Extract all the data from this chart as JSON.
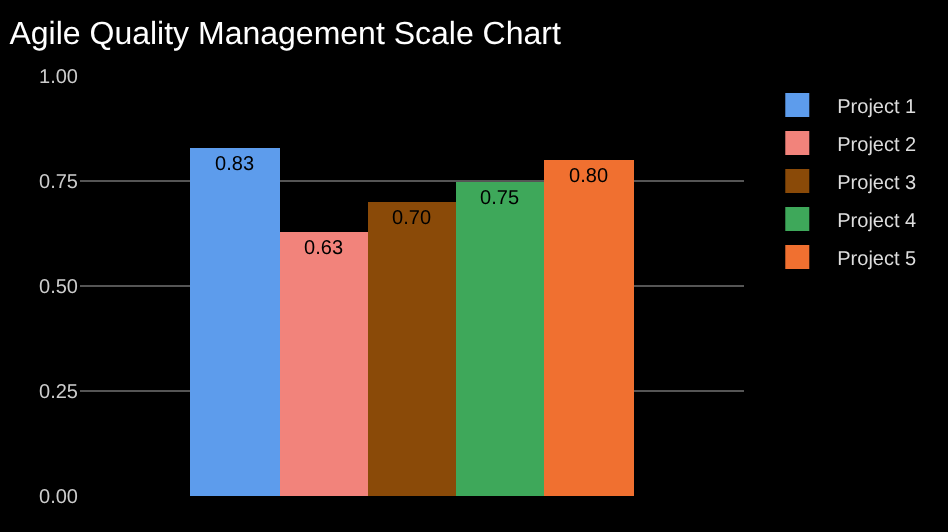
{
  "chart_data": {
    "type": "bar",
    "title": "Agile Quality Management Scale Chart",
    "categories": [
      null
    ],
    "series": [
      {
        "name": "Project 1",
        "color": "#5d9cec",
        "values": [
          0.83
        ],
        "value_labels": [
          "0.83"
        ]
      },
      {
        "name": "Project 2",
        "color": "#f2837b",
        "values": [
          0.63
        ],
        "value_labels": [
          "0.63"
        ]
      },
      {
        "name": "Project 3",
        "color": "#8a4a08",
        "values": [
          0.7
        ],
        "value_labels": [
          "0.70"
        ]
      },
      {
        "name": "Project 4",
        "color": "#3ea85a",
        "values": [
          0.75
        ],
        "value_labels": [
          "0.75"
        ]
      },
      {
        "name": "Project 5",
        "color": "#f07030",
        "values": [
          0.8
        ],
        "value_labels": [
          "0.80"
        ]
      }
    ],
    "ylim": [
      0,
      1
    ],
    "yticks": [
      {
        "value": 0,
        "label": "0.00"
      },
      {
        "value": 0.25,
        "label": "0.25"
      },
      {
        "value": 0.5,
        "label": "0.50"
      },
      {
        "value": 0.75,
        "label": "0.75"
      },
      {
        "value": 1,
        "label": "1.00"
      }
    ],
    "grid": "y",
    "legend": "top right",
    "tick_labels": "y"
  }
}
